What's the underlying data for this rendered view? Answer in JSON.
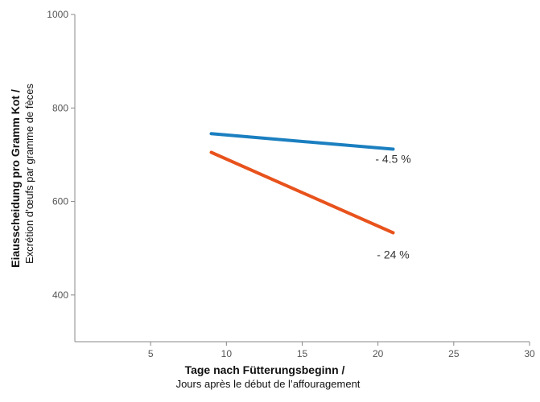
{
  "chart_data": {
    "type": "line",
    "xlim": [
      0,
      30
    ],
    "ylim": [
      300,
      1000
    ],
    "x_ticks": [
      5,
      10,
      15,
      20,
      25,
      30
    ],
    "y_ticks": [
      400,
      600,
      800,
      1000
    ],
    "x_tick_labels": [
      "5",
      "10",
      "15",
      "20",
      "25",
      "30"
    ],
    "y_tick_labels": [
      "400",
      "600",
      "800",
      "1000"
    ],
    "xlabel": "Tage nach Fütterungsbeginn /",
    "xlabel_secondary": "Jours après le début de l’affouragement",
    "ylabel": "Eiausscheidung pro Gramm Kot /",
    "ylabel_secondary": "Excrétion d’œufs par gramme de fèces",
    "grid": false,
    "series": [
      {
        "color": "#1b7fc0",
        "points": [
          [
            9,
            745
          ],
          [
            21,
            712
          ]
        ]
      },
      {
        "color": "#e8521c",
        "points": [
          [
            9,
            705
          ],
          [
            21,
            533
          ]
        ]
      }
    ],
    "annotations": [
      {
        "text": "- 4.5 %",
        "x": 21,
        "y": 683
      },
      {
        "text": "- 24 %",
        "x": 21,
        "y": 478
      }
    ]
  }
}
